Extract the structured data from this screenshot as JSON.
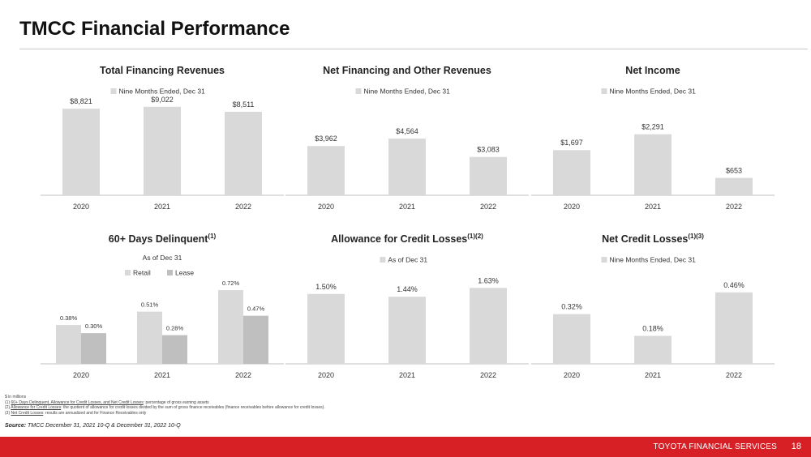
{
  "page": {
    "title": "TMCC Financial Performance",
    "footer_brand": "TOYOTA FINANCIAL SERVICES",
    "page_number": "18"
  },
  "footnotes": [
    {
      "term": "",
      "text": "$ in millions"
    },
    {
      "prefix": "(1) ",
      "term": "60+ Days Delinquent, Allowance for Credit Losses, and Net Credit Losses",
      "text": ": percentage of gross earning assets"
    },
    {
      "prefix": "(2) ",
      "term": "Allowance for Credit Losses",
      "text": ": the quotient of allowance for credit losses divided by the sum of gross finance receivables (finance receivables before allowance for credit losses)."
    },
    {
      "prefix": "(3) ",
      "term": "Net Credit Losses",
      "text": ": results are annualized and for Finance Receivables only"
    }
  ],
  "source": {
    "label": "Source:",
    "text": " TMCC December 31, 2021 10-Q & December 31, 2022 10-Q"
  },
  "colors": {
    "bar_primary": "#d9d9d9",
    "bar_lease": "#bfbfbf",
    "axis": "#bfbfbf",
    "footer": "#d71f26"
  },
  "chart_data": [
    {
      "type": "bar",
      "title": "Total Financing Revenues",
      "title_sup": "",
      "categories": [
        "2020",
        "2021",
        "2022"
      ],
      "series": [
        {
          "name": "Nine Months Ended, Dec 31",
          "values": [
            8821,
            9022,
            8511
          ],
          "labels": [
            "$8,821",
            "$9,022",
            "$8,511"
          ]
        }
      ],
      "ylim": [
        0,
        9500
      ],
      "subtitle": ""
    },
    {
      "type": "bar",
      "title": "Net  Financing and Other Revenues",
      "title_sup": "",
      "categories": [
        "2020",
        "2021",
        "2022"
      ],
      "series": [
        {
          "name": "Nine Months Ended, Dec 31",
          "values": [
            3962,
            4564,
            3083
          ],
          "labels": [
            "$3,962",
            "$4,564",
            "$3,083"
          ]
        }
      ],
      "ylim": [
        0,
        7500
      ],
      "subtitle": ""
    },
    {
      "type": "bar",
      "title": "Net Income",
      "title_sup": "",
      "categories": [
        "2020",
        "2021",
        "2022"
      ],
      "series": [
        {
          "name": "Nine Months Ended, Dec 31",
          "values": [
            1697,
            2291,
            653
          ],
          "labels": [
            "$1,697",
            "$2,291",
            "$653"
          ]
        }
      ],
      "ylim": [
        0,
        3500
      ],
      "subtitle": ""
    },
    {
      "type": "bar",
      "title": "60+ Days Delinquent",
      "title_sup": "(1)",
      "subtitle": "As of Dec 31",
      "categories": [
        "2020",
        "2021",
        "2022"
      ],
      "series": [
        {
          "name": "Retail",
          "values": [
            0.38,
            0.51,
            0.72
          ],
          "labels": [
            "0.38%",
            "0.51%",
            "0.72%"
          ]
        },
        {
          "name": "Lease",
          "values": [
            0.3,
            0.28,
            0.47
          ],
          "labels": [
            "0.30%",
            "0.28%",
            "0.47%"
          ]
        }
      ],
      "ylim": [
        0,
        0.8
      ]
    },
    {
      "type": "bar",
      "title": "Allowance for Credit Losses",
      "title_sup": "(1)(2)",
      "categories": [
        "2020",
        "2021",
        "2022"
      ],
      "series": [
        {
          "name": "As of Dec 31",
          "values": [
            1.5,
            1.44,
            1.63
          ],
          "labels": [
            "1.50%",
            "1.44%",
            "1.63%"
          ]
        }
      ],
      "ylim": [
        0,
        2.0
      ],
      "subtitle": ""
    },
    {
      "type": "bar",
      "title": "Net Credit Losses",
      "title_sup": "(1)(3)",
      "categories": [
        "2020",
        "2021",
        "2022"
      ],
      "series": [
        {
          "name": "Nine Months Ended, Dec 31",
          "values": [
            0.32,
            0.18,
            0.46
          ],
          "labels": [
            "0.32%",
            "0.18%",
            "0.46%"
          ]
        }
      ],
      "ylim": [
        0,
        0.6
      ],
      "subtitle": ""
    }
  ]
}
